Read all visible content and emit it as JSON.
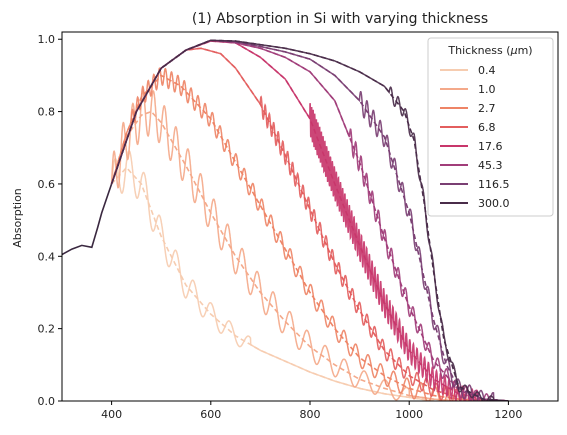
{
  "chart_data": {
    "type": "line",
    "title": "(1) Absorption in Si with varying thickness",
    "xlabel": "",
    "ylabel": "Absorption",
    "xlim": [
      300,
      1300
    ],
    "ylim": [
      0.0,
      1.02
    ],
    "x_ticks": [
      400,
      600,
      800,
      1000,
      1200
    ],
    "y_ticks": [
      0.0,
      0.2,
      0.4,
      0.6,
      0.8,
      1.0
    ],
    "grid": false,
    "legend": {
      "title": "Thickness ($\\mu$m)",
      "placement": "top-right"
    },
    "common_x": [
      300,
      320,
      340,
      360,
      372,
      380,
      400
    ],
    "common_y": [
      0.405,
      0.42,
      0.43,
      0.425,
      0.48,
      0.52,
      0.6
    ],
    "series": [
      {
        "name": "0.4",
        "color": "#f6ccb0",
        "x": [
          400,
          430,
          460,
          500,
          550,
          600,
          650,
          700,
          750,
          800,
          850,
          900,
          950,
          1000,
          1050
        ],
        "y": [
          0.6,
          0.645,
          0.6,
          0.455,
          0.32,
          0.24,
          0.18,
          0.14,
          0.11,
          0.08,
          0.055,
          0.035,
          0.02,
          0.01,
          0.0
        ],
        "osc": {
          "start": 400,
          "end": 680,
          "amp_start": 0.06,
          "amp_end": 0.02,
          "period_start": 28,
          "period_end": 40
        }
      },
      {
        "name": "1.0",
        "color": "#f4a98a",
        "x": [
          400,
          430,
          460,
          480,
          500,
          550,
          600,
          650,
          700,
          750,
          800,
          850,
          900,
          950,
          1000,
          1050,
          1100
        ],
        "y": [
          0.6,
          0.73,
          0.79,
          0.8,
          0.77,
          0.65,
          0.52,
          0.4,
          0.3,
          0.22,
          0.15,
          0.1,
          0.06,
          0.035,
          0.015,
          0.005,
          0.0
        ],
        "osc": {
          "start": 400,
          "end": 1000,
          "amp_start": 0.07,
          "amp_end": 0.02,
          "period_start": 18,
          "period_end": 45
        }
      },
      {
        "name": "2.7",
        "color": "#ee8466",
        "x": [
          400,
          430,
          460,
          500,
          540,
          600,
          650,
          700,
          750,
          800,
          850,
          900,
          950,
          1000,
          1050,
          1100,
          1150
        ],
        "y": [
          0.6,
          0.74,
          0.84,
          0.9,
          0.87,
          0.78,
          0.66,
          0.54,
          0.42,
          0.3,
          0.2,
          0.12,
          0.07,
          0.035,
          0.015,
          0.005,
          0.0
        ],
        "osc": {
          "start": 440,
          "end": 1080,
          "amp_start": 0.025,
          "amp_end": 0.025,
          "period_start": 10,
          "period_end": 30
        }
      },
      {
        "name": "6.8",
        "color": "#e35e5e",
        "x": [
          400,
          450,
          500,
          550,
          580,
          620,
          650,
          700,
          750,
          800,
          850,
          900,
          950,
          1000,
          1050,
          1100,
          1150,
          1200
        ],
        "y": [
          0.6,
          0.8,
          0.92,
          0.97,
          0.975,
          0.96,
          0.92,
          0.82,
          0.68,
          0.53,
          0.38,
          0.25,
          0.14,
          0.07,
          0.03,
          0.01,
          0.003,
          0.0
        ],
        "osc": {
          "start": 700,
          "end": 1120,
          "amp_start": 0.025,
          "amp_end": 0.02,
          "period_start": 8,
          "period_end": 22
        }
      },
      {
        "name": "17.6",
        "color": "#c8366b",
        "x": [
          400,
          450,
          500,
          550,
          600,
          650,
          700,
          750,
          800,
          850,
          900,
          950,
          1000,
          1050,
          1100,
          1150,
          1200
        ],
        "y": [
          0.6,
          0.8,
          0.92,
          0.97,
          0.995,
          0.99,
          0.95,
          0.89,
          0.78,
          0.6,
          0.43,
          0.27,
          0.14,
          0.06,
          0.02,
          0.005,
          0.0
        ],
        "osc": {
          "start": 800,
          "end": 1140,
          "amp_start": 0.05,
          "amp_end": 0.02,
          "period_start": 3,
          "period_end": 10
        }
      },
      {
        "name": "45.3",
        "color": "#a13d7a",
        "x": [
          400,
          450,
          500,
          550,
          600,
          650,
          700,
          750,
          800,
          850,
          900,
          950,
          1000,
          1050,
          1100,
          1150,
          1200
        ],
        "y": [
          0.6,
          0.8,
          0.92,
          0.97,
          0.997,
          0.99,
          0.975,
          0.95,
          0.91,
          0.83,
          0.66,
          0.45,
          0.26,
          0.11,
          0.03,
          0.005,
          0.0
        ],
        "osc": {
          "start": 880,
          "end": 1160,
          "amp_start": 0.03,
          "amp_end": 0.015,
          "period_start": 10,
          "period_end": 22
        }
      },
      {
        "name": "116.5",
        "color": "#7a3f73",
        "x": [
          400,
          450,
          500,
          550,
          600,
          650,
          700,
          750,
          800,
          850,
          900,
          950,
          1000,
          1025,
          1050,
          1075,
          1100,
          1150,
          1200
        ],
        "y": [
          0.6,
          0.8,
          0.92,
          0.97,
          0.997,
          0.993,
          0.98,
          0.965,
          0.945,
          0.9,
          0.83,
          0.73,
          0.52,
          0.37,
          0.22,
          0.1,
          0.035,
          0.005,
          0.0
        ],
        "osc": {
          "start": 900,
          "end": 1170,
          "amp_start": 0.03,
          "amp_end": 0.02,
          "period_start": 12,
          "period_end": 25
        }
      },
      {
        "name": "300.0",
        "color": "#4a2c4a",
        "x": [
          400,
          450,
          500,
          550,
          600,
          650,
          700,
          750,
          800,
          850,
          900,
          950,
          990,
          1010,
          1030,
          1050,
          1070,
          1100,
          1150,
          1200
        ],
        "y": [
          0.6,
          0.8,
          0.92,
          0.97,
          0.997,
          0.995,
          0.985,
          0.975,
          0.96,
          0.94,
          0.91,
          0.87,
          0.8,
          0.72,
          0.55,
          0.35,
          0.17,
          0.04,
          0.005,
          0.0
        ],
        "osc": {
          "start": 960,
          "end": 1170,
          "amp_start": 0.02,
          "amp_end": 0.01,
          "period_start": 14,
          "period_end": 28
        }
      }
    ]
  }
}
